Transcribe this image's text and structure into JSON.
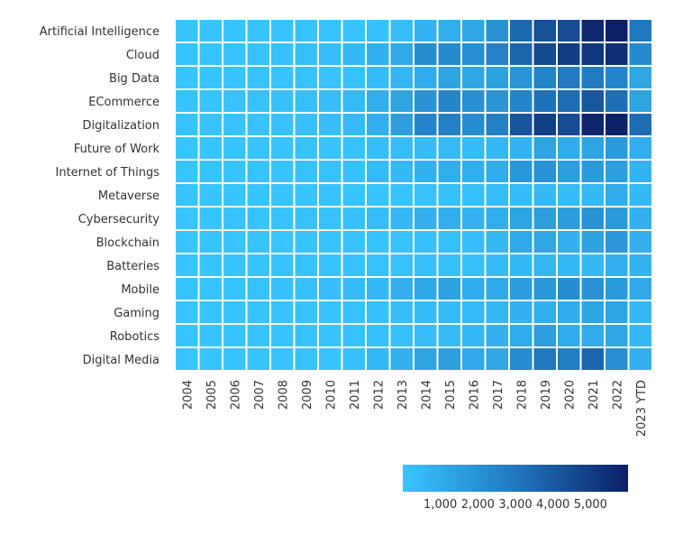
{
  "chart_data": {
    "type": "heatmap",
    "title": "",
    "xlabel": "",
    "ylabel": "",
    "x": [
      "2004",
      "2005",
      "2006",
      "2007",
      "2008",
      "2009",
      "2010",
      "2011",
      "2012",
      "2013",
      "2014",
      "2015",
      "2016",
      "2017",
      "2018",
      "2019",
      "2020",
      "2021",
      "2022",
      "2023 YTD"
    ],
    "y": [
      "Artificial Intelligence",
      "Cloud",
      "Big Data",
      "ECommerce",
      "Digitalization",
      "Future of Work",
      "Internet of Things",
      "Metaverse",
      "Cybersecurity",
      "Blockchain",
      "Batteries",
      "Mobile",
      "Gaming",
      "Robotics",
      "Digital Media"
    ],
    "values": [
      [
        50,
        60,
        60,
        70,
        70,
        80,
        90,
        100,
        200,
        300,
        700,
        900,
        1200,
        2000,
        3500,
        4300,
        4500,
        5700,
        5900,
        3000
      ],
      [
        80,
        100,
        120,
        150,
        200,
        250,
        350,
        500,
        800,
        1100,
        2200,
        2300,
        2100,
        2600,
        3600,
        4600,
        5000,
        5200,
        5500,
        2300
      ],
      [
        50,
        60,
        60,
        70,
        80,
        100,
        120,
        150,
        400,
        600,
        1000,
        1300,
        1200,
        1400,
        1900,
        2600,
        2900,
        2900,
        2500,
        1200
      ],
      [
        100,
        120,
        140,
        160,
        180,
        220,
        300,
        450,
        900,
        1300,
        2000,
        2500,
        2100,
        1900,
        2500,
        3200,
        3400,
        4100,
        3300,
        1300
      ],
      [
        80,
        90,
        110,
        130,
        160,
        200,
        300,
        450,
        900,
        1500,
        2500,
        2700,
        2200,
        2700,
        4200,
        4900,
        4500,
        5800,
        5900,
        3400
      ],
      [
        50,
        60,
        70,
        80,
        90,
        100,
        120,
        150,
        300,
        350,
        400,
        450,
        400,
        500,
        700,
        1300,
        1000,
        1300,
        1700,
        900
      ],
      [
        50,
        60,
        80,
        100,
        120,
        140,
        170,
        200,
        400,
        500,
        800,
        900,
        900,
        1000,
        1800,
        2000,
        1500,
        1700,
        1500,
        700
      ],
      [
        50,
        50,
        50,
        60,
        60,
        60,
        70,
        80,
        100,
        100,
        150,
        200,
        250,
        350,
        400,
        500,
        400,
        500,
        1000,
        500
      ],
      [
        60,
        70,
        80,
        100,
        120,
        140,
        170,
        200,
        350,
        500,
        800,
        900,
        700,
        900,
        1300,
        1500,
        1600,
        2000,
        1700,
        800
      ],
      [
        50,
        50,
        50,
        60,
        60,
        60,
        70,
        80,
        100,
        100,
        200,
        250,
        300,
        500,
        1100,
        1200,
        800,
        1400,
        1800,
        800
      ],
      [
        60,
        70,
        80,
        90,
        100,
        110,
        120,
        140,
        150,
        150,
        200,
        250,
        200,
        400,
        500,
        600,
        500,
        500,
        900,
        700
      ],
      [
        80,
        100,
        120,
        150,
        180,
        200,
        300,
        400,
        500,
        800,
        1200,
        1400,
        1000,
        1100,
        1600,
        1800,
        2200,
        2000,
        1700,
        1100
      ],
      [
        60,
        70,
        80,
        90,
        100,
        110,
        130,
        150,
        200,
        300,
        400,
        450,
        450,
        600,
        800,
        900,
        1000,
        1300,
        1300,
        500
      ],
      [
        60,
        70,
        80,
        90,
        100,
        110,
        130,
        150,
        200,
        250,
        300,
        400,
        500,
        800,
        1000,
        1500,
        1000,
        1000,
        1200,
        500
      ],
      [
        60,
        70,
        80,
        90,
        100,
        110,
        130,
        250,
        500,
        800,
        1300,
        1500,
        1100,
        1200,
        2200,
        3000,
        2800,
        3600,
        2100,
        800
      ]
    ],
    "color_scale": {
      "range": [
        0,
        6000
      ],
      "colors": [
        "#38c6ff",
        "#2178bf",
        "#0a1f66"
      ]
    },
    "colorbar_ticks": [
      1000,
      2000,
      3000,
      4000,
      5000
    ],
    "colorbar_tick_labels": [
      "1,000",
      "2,000",
      "3,000",
      "4,000",
      "5,000"
    ],
    "legend_position": "bottom-right"
  }
}
